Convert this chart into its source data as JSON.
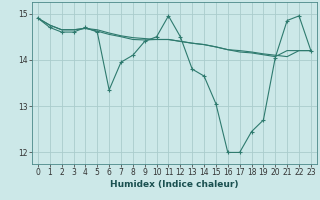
{
  "xlabel": "Humidex (Indice chaleur)",
  "bg_color": "#cce8e8",
  "grid_color": "#aacccc",
  "line_color": "#2e7a6e",
  "xlim": [
    -0.5,
    23.5
  ],
  "ylim": [
    11.75,
    15.25
  ],
  "yticks": [
    12,
    13,
    14,
    15
  ],
  "xticks": [
    0,
    1,
    2,
    3,
    4,
    5,
    6,
    7,
    8,
    9,
    10,
    11,
    12,
    13,
    14,
    15,
    16,
    17,
    18,
    19,
    20,
    21,
    22,
    23
  ],
  "line1_x": [
    0,
    1,
    2,
    3,
    4,
    5,
    6,
    7,
    8,
    9,
    10,
    11,
    12,
    13,
    14,
    15,
    16,
    17,
    18,
    19,
    20,
    21,
    22,
    23
  ],
  "line1_y": [
    14.9,
    14.7,
    14.6,
    14.6,
    14.7,
    14.6,
    13.35,
    13.95,
    14.1,
    14.4,
    14.5,
    14.95,
    14.5,
    13.8,
    13.65,
    13.05,
    12.0,
    12.0,
    12.45,
    12.7,
    14.05,
    14.85,
    14.95,
    14.2
  ],
  "line2_x": [
    0,
    1,
    2,
    3,
    4,
    5,
    6,
    7,
    8,
    9,
    10,
    11,
    12,
    13,
    14,
    15,
    16,
    17,
    18,
    19,
    20,
    21,
    22,
    23
  ],
  "line2_y": [
    14.9,
    14.75,
    14.65,
    14.65,
    14.68,
    14.65,
    14.58,
    14.52,
    14.48,
    14.46,
    14.44,
    14.44,
    14.4,
    14.36,
    14.33,
    14.28,
    14.22,
    14.2,
    14.17,
    14.13,
    14.1,
    14.07,
    14.2,
    14.2
  ],
  "line3_x": [
    0,
    1,
    2,
    3,
    4,
    5,
    6,
    7,
    8,
    9,
    10,
    11,
    12,
    13,
    14,
    15,
    16,
    17,
    18,
    19,
    20,
    21,
    22,
    23
  ],
  "line3_y": [
    14.9,
    14.75,
    14.65,
    14.65,
    14.68,
    14.62,
    14.55,
    14.5,
    14.44,
    14.43,
    14.44,
    14.44,
    14.4,
    14.36,
    14.33,
    14.28,
    14.22,
    14.17,
    14.15,
    14.11,
    14.07,
    14.2,
    14.2,
    14.2
  ],
  "xlabel_color": "#1a5050",
  "xlabel_fontsize": 6.5,
  "tick_fontsize": 5.5
}
